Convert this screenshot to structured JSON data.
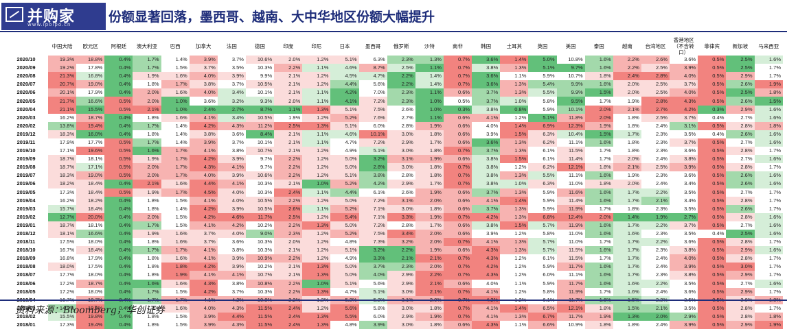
{
  "header": {
    "logo_text": "并购家",
    "logo_site": "www.ipoipo.cn",
    "title": "份额显著回落，墨西哥、越南、大中华地区份额大幅提升"
  },
  "source": "资料来源：Bloomberg，华创证券",
  "colors": {
    "high_strong": "#f2837f",
    "high_mid": "#f7b3b1",
    "high_light": "#fbdcdb",
    "low_strong": "#62c07a",
    "low_mid": "#a3d9ab",
    "low_light": "#d5eed8",
    "neutral": "#ffffff"
  },
  "columns": [
    "中国大陆",
    "欧元区",
    "阿根廷",
    "澳大利亚",
    "巴西",
    "加拿大",
    "法国",
    "德国",
    "印度",
    "印尼",
    "日本",
    "墨西哥",
    "俄罗斯",
    "沙特",
    "南非",
    "韩国",
    "土耳其",
    "英国",
    "美国",
    "泰国",
    "越南",
    "台湾地区",
    "香港地区（不含转口）",
    "菲律宾",
    "新加坡",
    "马来西亚"
  ],
  "rows": [
    {
      "date": "2020/10",
      "v": [
        "19.3%",
        "18.8%",
        "0.4%",
        "1.7%",
        "1.4%",
        "3.9%",
        "3.7%",
        "10.6%",
        "2.0%",
        "1.2%",
        "5.1%",
        "6.3%",
        "2.3%",
        "1.3%",
        "0.7%",
        "3.6%",
        "1.4%",
        "5.0%",
        "10.8%",
        "1.6%",
        "2.2%",
        "2.6%",
        "3.6%",
        "0.5%",
        "2.5%",
        "1.6%"
      ]
    },
    {
      "date": "2020/09",
      "v": [
        "19.2%",
        "17.8%",
        "0.4%",
        "1.7%",
        "1.5%",
        "3.7%",
        "3.5%",
        "10.3%",
        "2.2%",
        "1.1%",
        "4.6%",
        "8.7%",
        "2.5%",
        "1.1%",
        "0.7%",
        "3.8%",
        "1.3%",
        "5.1%",
        "9.7%",
        "1.6%",
        "2.2%",
        "2.5%",
        "3.9%",
        "0.5%",
        "2.5%",
        "1.7%"
      ]
    },
    {
      "date": "2020/08",
      "v": [
        "21.3%",
        "16.8%",
        "0.4%",
        "1.9%",
        "1.6%",
        "4.0%",
        "3.9%",
        "9.9%",
        "2.1%",
        "1.2%",
        "4.5%",
        "4.7%",
        "2.2%",
        "1.4%",
        "0.7%",
        "3.6%",
        "1.1%",
        "5.9%",
        "10.7%",
        "1.8%",
        "2.4%",
        "2.8%",
        "4.0%",
        "0.5%",
        "2.9%",
        "1.7%"
      ]
    },
    {
      "date": "2020/07",
      "v": [
        "20.7%",
        "19.0%",
        "0.4%",
        "1.8%",
        "1.7%",
        "3.8%",
        "3.7%",
        "10.5%",
        "2.1%",
        "1.2%",
        "4.4%",
        "5.6%",
        "2.2%",
        "1.4%",
        "0.7%",
        "3.6%",
        "1.3%",
        "5.4%",
        "9.9%",
        "1.6%",
        "2.0%",
        "2.5%",
        "3.7%",
        "0.5%",
        "2.6%",
        "1.9%"
      ]
    },
    {
      "date": "2020/06",
      "v": [
        "20.1%",
        "17.9%",
        "0.4%",
        "2.0%",
        "1.6%",
        "4.0%",
        "3.4%",
        "10.1%",
        "2.1%",
        "1.1%",
        "4.2%",
        "7.0%",
        "2.3%",
        "1.1%",
        "0.6%",
        "3.7%",
        "1.3%",
        "5.5%",
        "9.9%",
        "1.5%",
        "2.0%",
        "2.5%",
        "4.0%",
        "0.5%",
        "2.5%",
        "1.8%"
      ]
    },
    {
      "date": "2020/05",
      "v": [
        "21.7%",
        "16.6%",
        "0.5%",
        "2.0%",
        "1.0%",
        "3.6%",
        "3.2%",
        "9.3%",
        "2.0%",
        "1.1%",
        "4.1%",
        "7.2%",
        "2.3%",
        "1.0%",
        "0.5%",
        "3.7%",
        "1.0%",
        "5.8%",
        "9.5%",
        "1.7%",
        "1.9%",
        "2.8%",
        "4.3%",
        "0.5%",
        "2.6%",
        "1.5%"
      ]
    },
    {
      "date": "2020/04",
      "v": [
        "21.1%",
        "15.5%",
        "0.5%",
        "2.1%",
        "1.0%",
        "2.4%",
        "2.7%",
        "8.7%",
        "1.1%",
        "1.3%",
        "5.1%",
        "7.5%",
        "2.6%",
        "1.0%",
        "0.3%",
        "3.8%",
        "0.8%",
        "5.9%",
        "10.1%",
        "2.0%",
        "2.1%",
        "2.7%",
        "4.2%",
        "0.3%",
        "2.9%",
        "1.6%"
      ]
    },
    {
      "date": "2020/03",
      "v": [
        "16.2%",
        "18.7%",
        "0.4%",
        "1.8%",
        "1.6%",
        "4.1%",
        "3.4%",
        "10.5%",
        "1.9%",
        "1.2%",
        "5.2%",
        "7.6%",
        "2.7%",
        "1.1%",
        "0.6%",
        "4.1%",
        "1.2%",
        "5.1%",
        "11.8%",
        "2.0%",
        "1.8%",
        "2.5%",
        "3.7%",
        "0.4%",
        "2.7%",
        "1.6%"
      ]
    },
    {
      "date": "2020/02",
      "v": [
        "13.8%",
        "19.4%",
        "0.4%",
        "1.7%",
        "1.4%",
        "4.2%",
        "4.3%",
        "11.2%",
        "2.5%",
        "1.3%",
        "5.1%",
        "6.0%",
        "2.8%",
        "1.9%",
        "0.6%",
        "4.0%",
        "1.4%",
        "6.9%",
        "12.3%",
        "1.9%",
        "1.8%",
        "2.4%",
        "3.1%",
        "0.5%",
        "2.8%",
        "1.8%"
      ]
    },
    {
      "date": "2019/12",
      "v": [
        "18.3%",
        "16.0%",
        "0.4%",
        "1.8%",
        "1.4%",
        "3.8%",
        "3.6%",
        "8.4%",
        "2.1%",
        "1.1%",
        "4.6%",
        "10.1%",
        "3.0%",
        "1.8%",
        "0.6%",
        "3.9%",
        "1.5%",
        "6.3%",
        "10.4%",
        "1.5%",
        "1.7%",
        "2.3%",
        "3.5%",
        "0.4%",
        "2.6%",
        "1.6%"
      ]
    },
    {
      "date": "2019/11",
      "v": [
        "17.9%",
        "17.7%",
        "0.5%",
        "1.7%",
        "1.4%",
        "3.9%",
        "3.7%",
        "10.1%",
        "2.1%",
        "1.1%",
        "4.7%",
        "7.2%",
        "2.9%",
        "1.7%",
        "0.6%",
        "3.6%",
        "1.3%",
        "6.2%",
        "11.1%",
        "1.6%",
        "1.8%",
        "2.3%",
        "3.7%",
        "0.5%",
        "2.7%",
        "1.6%"
      ]
    },
    {
      "date": "2019/10",
      "v": [
        "17.1%",
        "19.6%",
        "0.5%",
        "1.6%",
        "1.7%",
        "4.1%",
        "3.8%",
        "10.7%",
        "2.1%",
        "1.2%",
        "4.9%",
        "5.1%",
        "3.0%",
        "1.8%",
        "0.7%",
        "3.7%",
        "1.3%",
        "6.1%",
        "11.5%",
        "1.7%",
        "1.8%",
        "2.3%",
        "3.6%",
        "0.5%",
        "2.8%",
        "1.7%"
      ]
    },
    {
      "date": "2019/09",
      "v": [
        "18.7%",
        "18.1%",
        "0.5%",
        "1.9%",
        "1.7%",
        "4.2%",
        "3.9%",
        "9.7%",
        "2.2%",
        "1.2%",
        "5.0%",
        "3.2%",
        "3.1%",
        "1.9%",
        "0.6%",
        "3.8%",
        "1.5%",
        "6.1%",
        "11.4%",
        "1.7%",
        "2.0%",
        "2.4%",
        "3.8%",
        "0.5%",
        "2.7%",
        "1.6%"
      ]
    },
    {
      "date": "2019/08",
      "v": [
        "18.7%",
        "17.1%",
        "0.5%",
        "2.0%",
        "1.7%",
        "4.3%",
        "4.1%",
        "9.7%",
        "2.2%",
        "1.2%",
        "5.0%",
        "2.8%",
        "3.0%",
        "1.8%",
        "0.7%",
        "3.8%",
        "1.2%",
        "6.2%",
        "12.1%",
        "1.8%",
        "2.1%",
        "2.5%",
        "3.9%",
        "0.5%",
        "2.8%",
        "1.7%"
      ]
    },
    {
      "date": "2019/07",
      "v": [
        "18.3%",
        "19.0%",
        "0.5%",
        "2.0%",
        "1.7%",
        "4.0%",
        "3.9%",
        "10.6%",
        "2.2%",
        "1.2%",
        "5.1%",
        "3.8%",
        "2.8%",
        "1.8%",
        "0.7%",
        "3.8%",
        "1.3%",
        "5.5%",
        "11.1%",
        "1.6%",
        "1.9%",
        "2.3%",
        "3.6%",
        "0.5%",
        "2.6%",
        "1.6%"
      ]
    },
    {
      "date": "2019/06",
      "v": [
        "18.2%",
        "18.4%",
        "0.4%",
        "2.1%",
        "1.6%",
        "4.4%",
        "4.1%",
        "10.3%",
        "2.1%",
        "1.0%",
        "5.2%",
        "4.2%",
        "2.9%",
        "1.7%",
        "0.7%",
        "3.8%",
        "1.0%",
        "6.3%",
        "11.0%",
        "1.8%",
        "2.0%",
        "2.4%",
        "3.4%",
        "0.5%",
        "2.6%",
        "1.6%"
      ]
    },
    {
      "date": "2019/05",
      "v": [
        "17.3%",
        "18.4%",
        "0.5%",
        "1.9%",
        "1.7%",
        "4.5%",
        "4.0%",
        "10.3%",
        "2.4%",
        "1.1%",
        "4.4%",
        "6.1%",
        "2.6%",
        "1.9%",
        "0.6%",
        "3.7%",
        "1.3%",
        "5.9%",
        "11.6%",
        "1.6%",
        "1.7%",
        "2.2%",
        "3.5%",
        "0.5%",
        "2.7%",
        "1.7%"
      ]
    },
    {
      "date": "2019/04",
      "v": [
        "16.2%",
        "18.2%",
        "0.4%",
        "1.8%",
        "1.5%",
        "4.1%",
        "4.0%",
        "10.5%",
        "2.2%",
        "1.2%",
        "5.0%",
        "7.2%",
        "3.1%",
        "2.0%",
        "0.6%",
        "4.1%",
        "1.4%",
        "5.9%",
        "11.4%",
        "1.6%",
        "1.7%",
        "2.1%",
        "3.4%",
        "0.5%",
        "2.8%",
        "1.7%"
      ]
    },
    {
      "date": "2019/03",
      "v": [
        "15.7%",
        "18.4%",
        "0.4%",
        "1.8%",
        "1.4%",
        "4.2%",
        "3.9%",
        "10.5%",
        "2.6%",
        "1.1%",
        "5.2%",
        "7.1%",
        "3.0%",
        "1.8%",
        "0.6%",
        "3.7%",
        "1.3%",
        "5.9%",
        "11.9%",
        "1.7%",
        "1.8%",
        "2.3%",
        "3.5%",
        "0.5%",
        "2.6%",
        "1.7%"
      ]
    },
    {
      "date": "2019/02",
      "v": [
        "12.7%",
        "20.0%",
        "0.4%",
        "2.0%",
        "1.5%",
        "4.2%",
        "4.6%",
        "11.7%",
        "2.5%",
        "1.2%",
        "5.4%",
        "7.1%",
        "3.3%",
        "1.9%",
        "0.7%",
        "4.2%",
        "1.3%",
        "6.8%",
        "12.4%",
        "2.0%",
        "1.4%",
        "1.9%",
        "2.7%",
        "0.5%",
        "2.8%",
        "1.6%"
      ]
    },
    {
      "date": "2019/01",
      "v": [
        "18.7%",
        "18.1%",
        "0.4%",
        "1.7%",
        "1.5%",
        "4.1%",
        "4.2%",
        "10.2%",
        "2.2%",
        "1.3%",
        "5.0%",
        "7.2%",
        "2.8%",
        "1.7%",
        "0.6%",
        "3.8%",
        "1.5%",
        "5.7%",
        "11.9%",
        "1.6%",
        "1.7%",
        "2.2%",
        "3.7%",
        "0.5%",
        "2.7%",
        "1.6%"
      ]
    },
    {
      "date": "2018/12",
      "v": [
        "18.1%",
        "16.6%",
        "0.4%",
        "1.9%",
        "1.6%",
        "3.7%",
        "4.0%",
        "9.0%",
        "2.3%",
        "1.2%",
        "5.2%",
        "7.5%",
        "3.4%",
        "2.0%",
        "0.6%",
        "3.9%",
        "1.2%",
        "5.8%",
        "11.0%",
        "1.6%",
        "1.6%",
        "2.3%",
        "3.5%",
        "0.4%",
        "2.5%",
        "1.6%"
      ]
    },
    {
      "date": "2018/11",
      "v": [
        "17.5%",
        "18.0%",
        "0.4%",
        "1.8%",
        "1.6%",
        "3.7%",
        "3.6%",
        "10.3%",
        "2.0%",
        "1.2%",
        "4.8%",
        "7.3%",
        "3.2%",
        "2.0%",
        "0.7%",
        "4.1%",
        "1.3%",
        "5.7%",
        "11.0%",
        "1.7%",
        "1.7%",
        "2.2%",
        "3.6%",
        "0.5%",
        "2.8%",
        "1.7%"
      ]
    },
    {
      "date": "2018/10",
      "v": [
        "16.7%",
        "18.4%",
        "0.4%",
        "1.7%",
        "1.7%",
        "4.1%",
        "3.8%",
        "10.3%",
        "2.1%",
        "1.2%",
        "5.1%",
        "3.2%",
        "2.2%",
        "1.9%",
        "0.6%",
        "4.3%",
        "1.3%",
        "5.7%",
        "11.5%",
        "1.6%",
        "1.7%",
        "2.3%",
        "3.8%",
        "0.5%",
        "2.9%",
        "1.6%"
      ]
    },
    {
      "date": "2018/09",
      "v": [
        "16.8%",
        "17.9%",
        "0.4%",
        "1.8%",
        "1.6%",
        "4.1%",
        "3.9%",
        "10.9%",
        "2.2%",
        "1.2%",
        "4.9%",
        "3.3%",
        "2.1%",
        "2.1%",
        "0.7%",
        "4.3%",
        "1.2%",
        "6.1%",
        "11.5%",
        "1.7%",
        "1.7%",
        "2.4%",
        "4.0%",
        "0.5%",
        "2.8%",
        "1.7%"
      ]
    },
    {
      "date": "2018/08",
      "v": [
        "18.0%",
        "17.5%",
        "0.4%",
        "1.8%",
        "1.8%",
        "4.2%",
        "3.9%",
        "10.2%",
        "2.1%",
        "1.3%",
        "5.0%",
        "3.7%",
        "2.3%",
        "2.0%",
        "0.7%",
        "4.2%",
        "1.2%",
        "5.9%",
        "11.7%",
        "1.6%",
        "1.7%",
        "2.4%",
        "3.9%",
        "0.5%",
        "3.0%",
        "1.7%"
      ]
    },
    {
      "date": "2018/07",
      "v": [
        "17.7%",
        "18.0%",
        "0.4%",
        "1.8%",
        "1.9%",
        "4.1%",
        "4.1%",
        "10.7%",
        "2.1%",
        "1.3%",
        "5.0%",
        "4.0%",
        "2.9%",
        "2.2%",
        "0.7%",
        "4.3%",
        "1.2%",
        "6.0%",
        "11.1%",
        "1.6%",
        "1.7%",
        "2.3%",
        "3.8%",
        "0.5%",
        "2.9%",
        "1.7%"
      ]
    },
    {
      "date": "2018/06",
      "v": [
        "17.2%",
        "18.7%",
        "0.4%",
        "1.6%",
        "1.6%",
        "4.3%",
        "3.8%",
        "10.8%",
        "2.2%",
        "1.0%",
        "5.1%",
        "5.6%",
        "2.9%",
        "2.1%",
        "0.6%",
        "4.0%",
        "1.1%",
        "5.9%",
        "11.7%",
        "1.6%",
        "1.6%",
        "2.2%",
        "3.5%",
        "0.5%",
        "2.7%",
        "1.6%"
      ]
    },
    {
      "date": "2018/05",
      "v": [
        "17.2%",
        "18.0%",
        "0.4%",
        "1.7%",
        "1.5%",
        "4.2%",
        "3.7%",
        "10.3%",
        "2.2%",
        "1.3%",
        "4.7%",
        "5.1%",
        "3.0%",
        "2.1%",
        "0.7%",
        "4.1%",
        "1.2%",
        "5.8%",
        "11.9%",
        "1.7%",
        "1.6%",
        "2.4%",
        "3.6%",
        "0.5%",
        "2.9%",
        "1.7%"
      ]
    },
    {
      "date": "2018/04",
      "v": [
        "16.7%",
        "18.7%",
        "0.4%",
        "1.7%",
        "1.7%",
        "4.1%",
        "4.2%",
        "10.8%",
        "2.2%",
        "1.2%",
        "5.2%",
        "5.2%",
        "3.1%",
        "2.0%",
        "0.7%",
        "4.2%",
        "1.2%",
        "6.1%",
        "11.7%",
        "1.6%",
        "1.5%",
        "2.2%",
        "3.5%",
        "0.5%",
        "2.8%",
        "1.8%"
      ]
    },
    {
      "date": "2018/03",
      "v": [
        "14.0%",
        "19.8%",
        "0.4%",
        "1.8%",
        "1.6%",
        "4.0%",
        "4.3%",
        "11.5%",
        "2.4%",
        "1.2%",
        "5.6%",
        "5.8%",
        "3.0%",
        "1.8%",
        "0.7%",
        "4.1%",
        "1.4%",
        "6.5%",
        "12.1%",
        "1.8%",
        "1.5%",
        "2.1%",
        "3.5%",
        "0.5%",
        "2.8%",
        "1.7%"
      ]
    },
    {
      "date": "2018/02",
      "v": [
        "15.5%",
        "19.8%",
        "0.4%",
        "1.8%",
        "1.5%",
        "3.9%",
        "4.4%",
        "11.5%",
        "2.4%",
        "1.3%",
        "5.5%",
        "6.0%",
        "2.9%",
        "1.9%",
        "0.7%",
        "4.1%",
        "1.3%",
        "6.7%",
        "11.7%",
        "1.9%",
        "1.3%",
        "2.0%",
        "2.9%",
        "0.5%",
        "2.8%",
        "1.8%"
      ]
    },
    {
      "date": "2018/01",
      "v": [
        "17.3%",
        "19.4%",
        "0.4%",
        "1.8%",
        "1.5%",
        "3.9%",
        "4.3%",
        "11.5%",
        "2.4%",
        "1.3%",
        "4.8%",
        "3.9%",
        "3.0%",
        "1.8%",
        "0.6%",
        "4.3%",
        "1.1%",
        "6.6%",
        "10.9%",
        "1.8%",
        "1.8%",
        "2.4%",
        "3.9%",
        "0.5%",
        "2.9%",
        "1.9%"
      ]
    }
  ]
}
